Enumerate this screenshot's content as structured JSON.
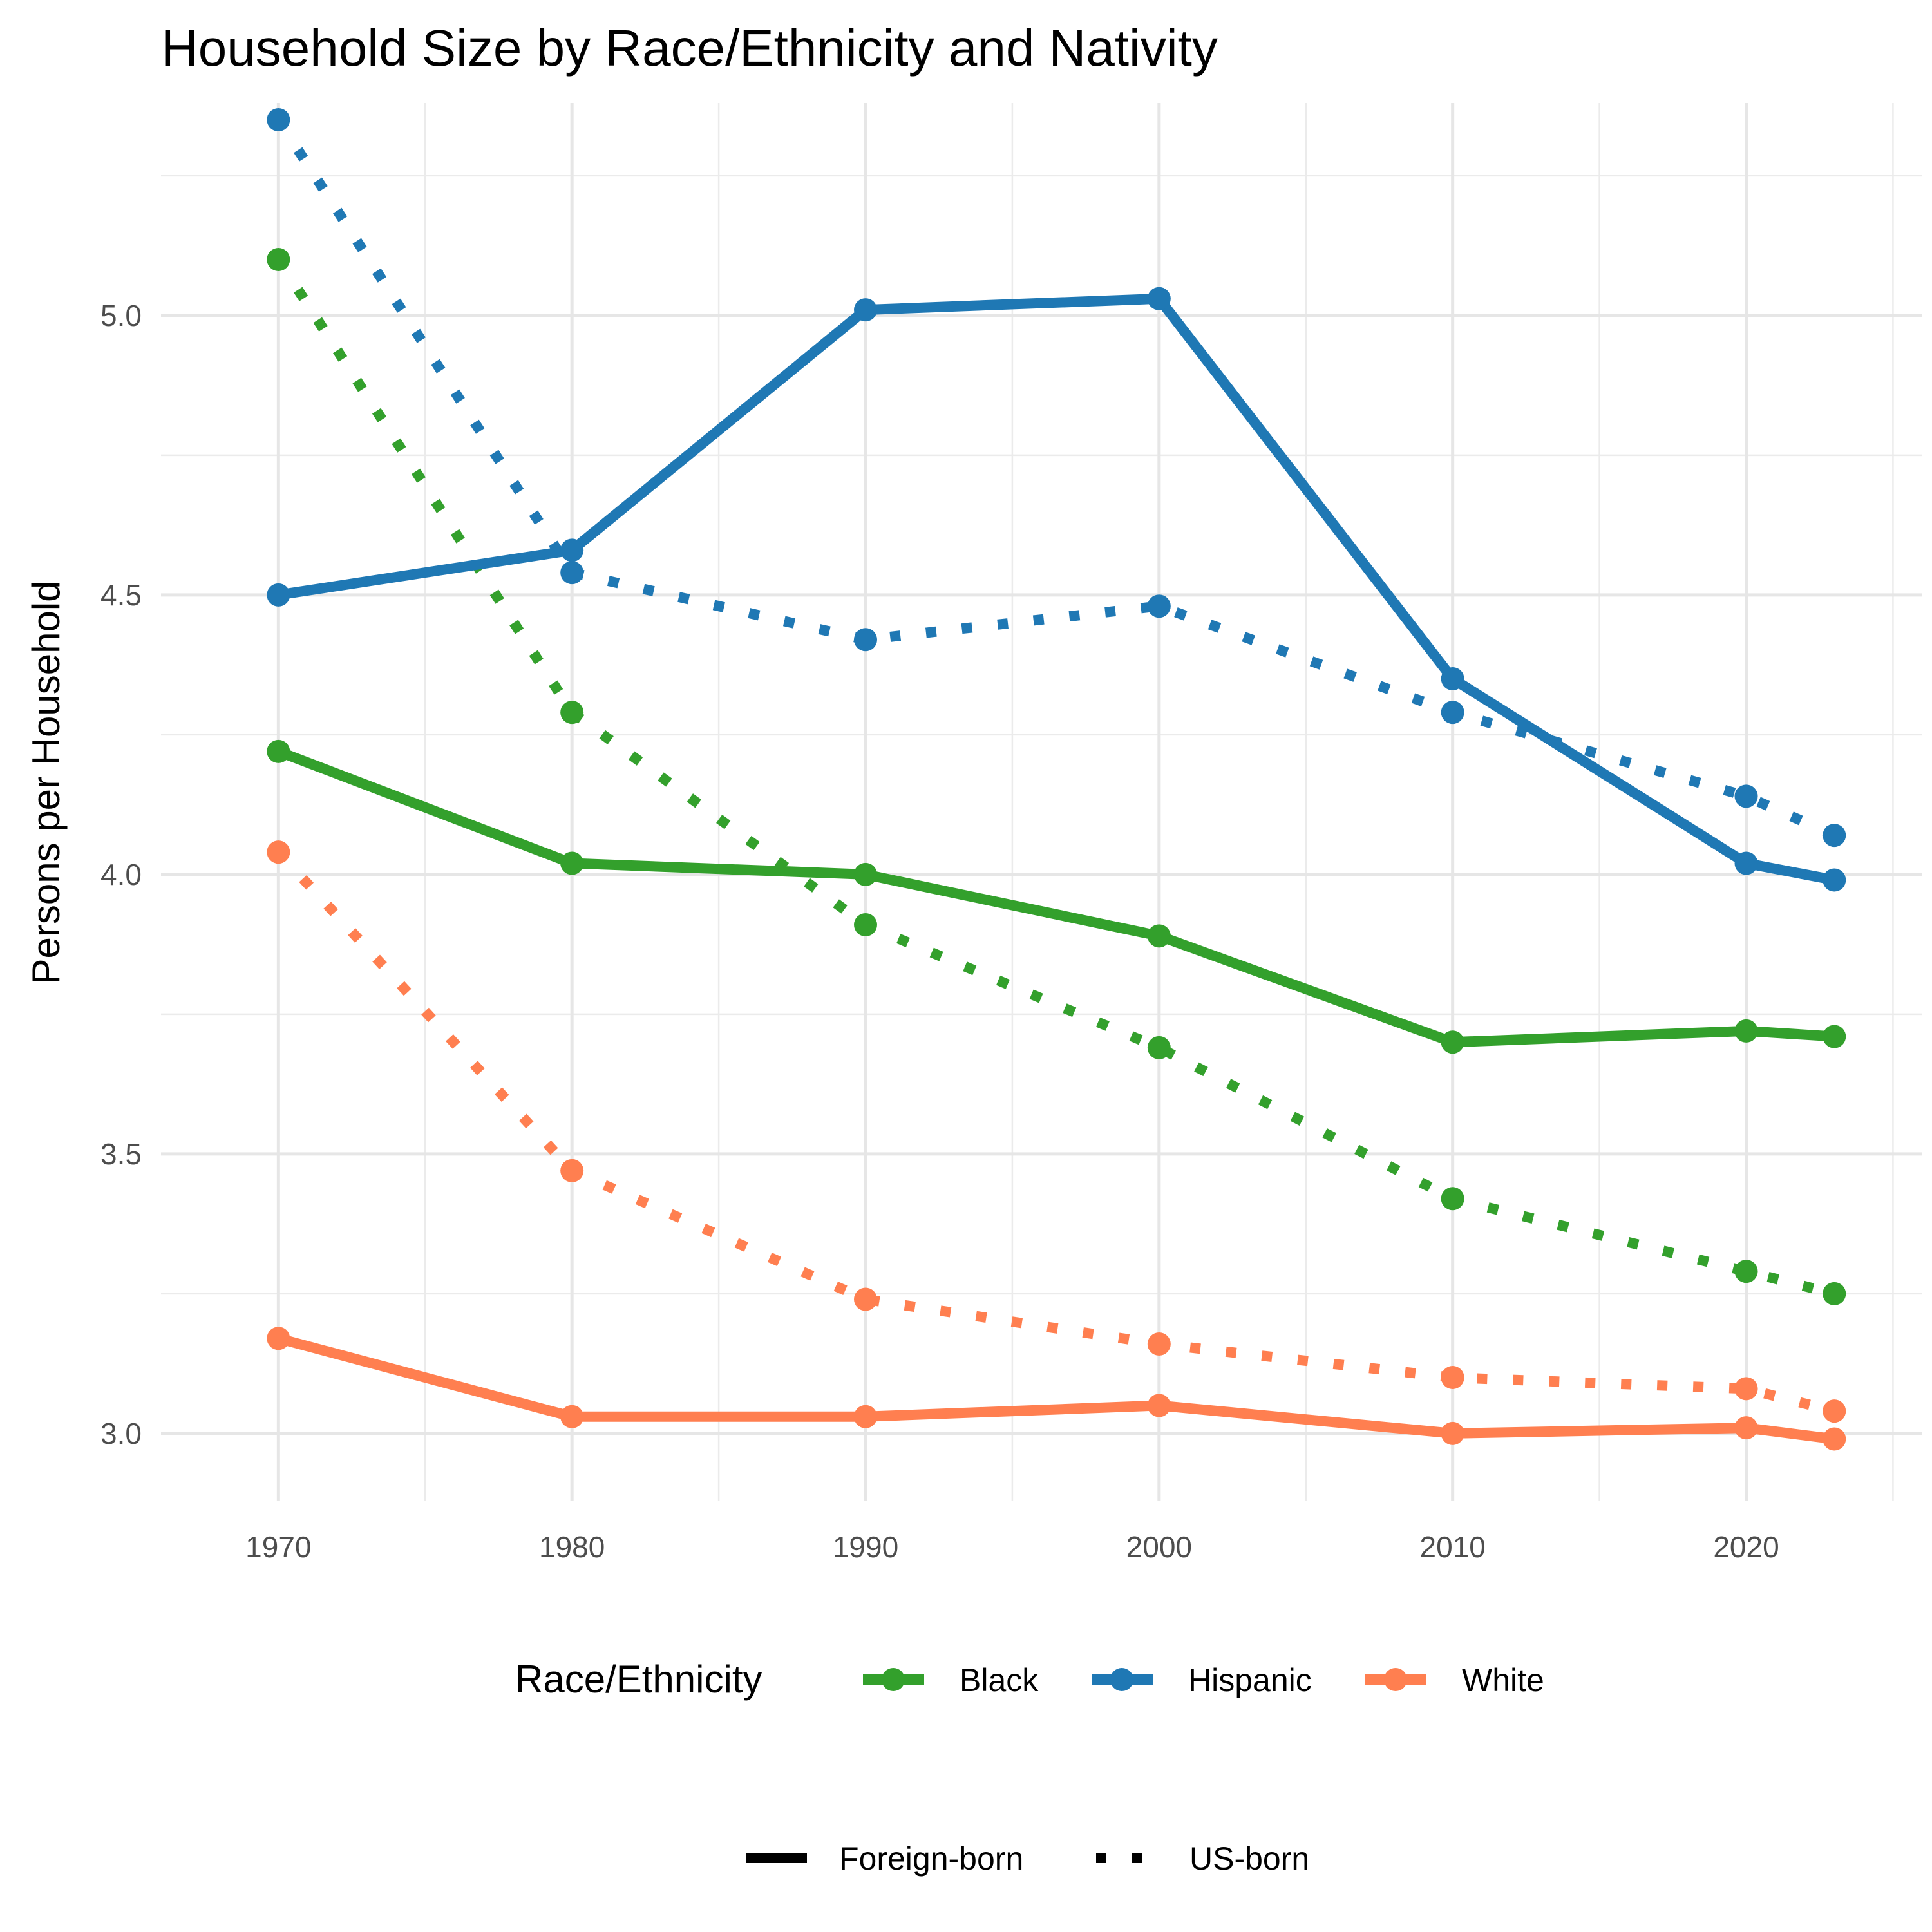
{
  "chart_data": {
    "type": "line",
    "title": "Household Size by Race/Ethnicity and Nativity",
    "xlabel": "",
    "ylabel": "Persons per Household",
    "x": [
      1970,
      1980,
      1990,
      2000,
      2010,
      2020,
      2023
    ],
    "xlim": [
      1966,
      2026
    ],
    "ylim": [
      2.88,
      5.38
    ],
    "x_ticks": [
      1970,
      1980,
      1990,
      2000,
      2010,
      2020
    ],
    "y_ticks": [
      3.0,
      3.5,
      4.0,
      4.5,
      5.0
    ],
    "x_tick_labels": [
      "1970",
      "1980",
      "1990",
      "2000",
      "2010",
      "2020"
    ],
    "y_tick_labels": [
      "3.0",
      "3.5",
      "4.0",
      "4.5",
      "5.0"
    ],
    "grid": true,
    "legend_placement": "bottom",
    "series": [
      {
        "group": "Black",
        "nativity": "Foreign-born",
        "color": "#33a02c",
        "style": "solid",
        "values": [
          4.22,
          4.02,
          4.0,
          3.89,
          3.7,
          3.72,
          3.71
        ]
      },
      {
        "group": "Black",
        "nativity": "US-born",
        "color": "#33a02c",
        "style": "dotted",
        "values": [
          5.1,
          4.29,
          3.91,
          3.69,
          3.42,
          3.29,
          3.25
        ]
      },
      {
        "group": "Hispanic",
        "nativity": "Foreign-born",
        "color": "#1f78b4",
        "style": "solid",
        "values": [
          4.5,
          4.58,
          5.01,
          5.03,
          4.35,
          4.02,
          3.99
        ]
      },
      {
        "group": "Hispanic",
        "nativity": "US-born",
        "color": "#1f78b4",
        "style": "dotted",
        "values": [
          5.35,
          4.54,
          4.42,
          4.48,
          4.29,
          4.14,
          4.07
        ]
      },
      {
        "group": "White",
        "nativity": "Foreign-born",
        "color": "#ff7f50",
        "style": "solid",
        "values": [
          3.17,
          3.03,
          3.03,
          3.05,
          3.0,
          3.01,
          2.99
        ]
      },
      {
        "group": "White",
        "nativity": "US-born",
        "color": "#ff7f50",
        "style": "dotted",
        "values": [
          4.04,
          3.47,
          3.24,
          3.16,
          3.1,
          3.08,
          3.04
        ]
      }
    ],
    "legend_color": {
      "title": "Race/Ethnicity",
      "items": [
        {
          "label": "Black",
          "color": "#33a02c"
        },
        {
          "label": "Hispanic",
          "color": "#1f78b4"
        },
        {
          "label": "White",
          "color": "#ff7f50"
        }
      ]
    },
    "legend_linetype": {
      "items": [
        {
          "label": "Foreign-born",
          "style": "solid"
        },
        {
          "label": "US-born",
          "style": "dotted"
        }
      ]
    }
  }
}
